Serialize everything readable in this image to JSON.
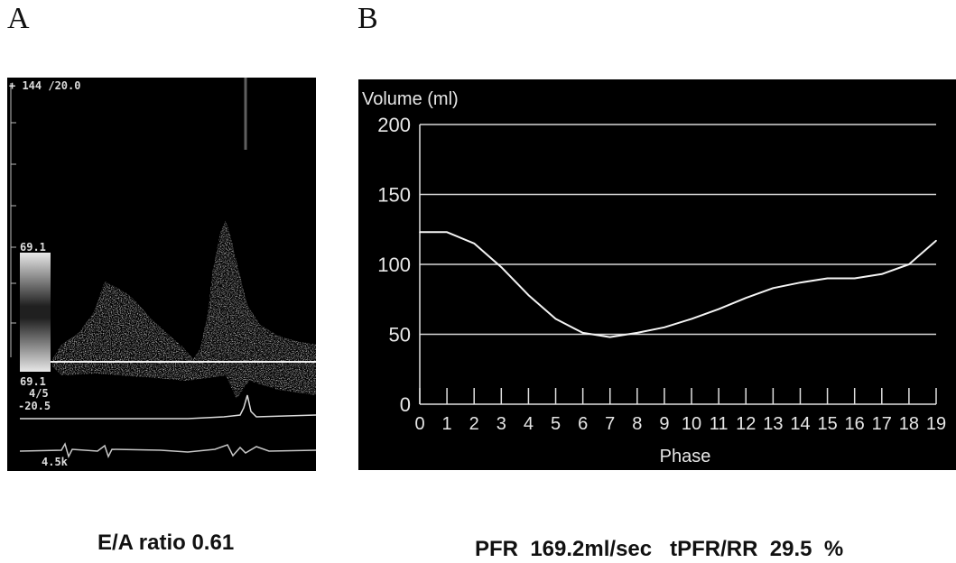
{
  "panels": {
    "a": {
      "letter": "A",
      "caption": "E/A ratio 0.61",
      "labels": {
        "top": "+ 144 /20.0",
        "scale_top": "69.1",
        "scale_bottom": "69.1",
        "ratio": "4/5",
        "neg": "-20.5",
        "freq": "4.5k"
      }
    },
    "b": {
      "letter": "B",
      "caption": "PFR  169.2ml/sec   tPFR/RR  29.5  %"
    }
  },
  "chart_data": {
    "type": "line",
    "ylabel": "Volume (ml)",
    "xlabel": "Phase",
    "ylim": [
      0,
      200
    ],
    "yticks": [
      0,
      50,
      100,
      150,
      200
    ],
    "grid": true,
    "xlim": [
      0,
      19
    ],
    "x": [
      0,
      1,
      2,
      3,
      4,
      5,
      6,
      7,
      8,
      9,
      10,
      11,
      12,
      13,
      14,
      15,
      16,
      17,
      18,
      19
    ],
    "series": [
      {
        "values": [
          123,
          123,
          115,
          98,
          78,
          61,
          51,
          48,
          51,
          55,
          61,
          68,
          76,
          83,
          87,
          90,
          90,
          93,
          100,
          117
        ]
      }
    ]
  }
}
